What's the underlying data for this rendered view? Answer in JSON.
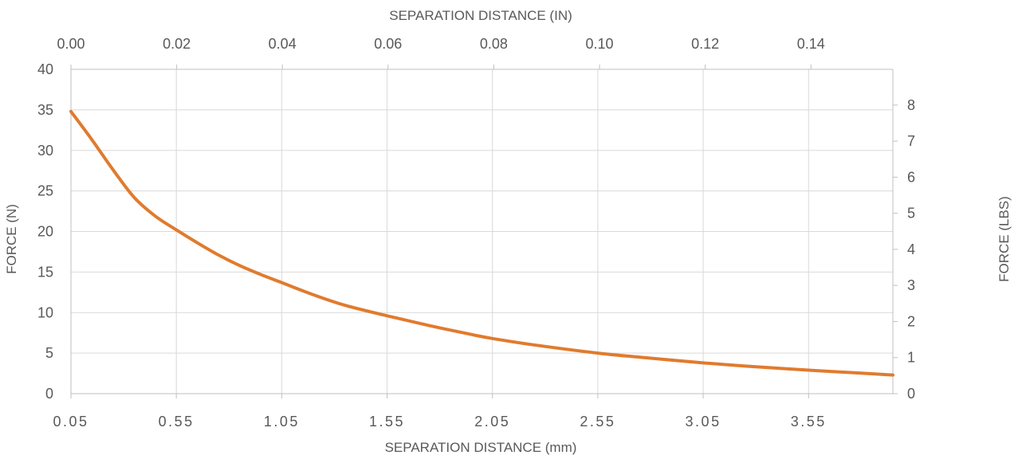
{
  "chart_data": {
    "type": "line",
    "title": "",
    "xlabel": "SEPARATION DISTANCE (mm)",
    "x2label": "SEPARATION DISTANCE (IN)",
    "ylabel": "FORCE (N)",
    "y2label": "FORCE (LBS)",
    "xlim": [
      0.05,
      3.95
    ],
    "ylim": [
      0,
      40
    ],
    "x2lim": [
      0,
      0.1555
    ],
    "y2lim": [
      0,
      8.99
    ],
    "x_ticks": [
      "0.05",
      "0.55",
      "1.05",
      "1.55",
      "2.05",
      "2.55",
      "3.05",
      "3.55"
    ],
    "x2_ticks": [
      "0.00",
      "0.02",
      "0.04",
      "0.06",
      "0.08",
      "0.10",
      "0.12",
      "0.14"
    ],
    "y_ticks": [
      "0",
      "5",
      "10",
      "15",
      "20",
      "25",
      "30",
      "35",
      "40"
    ],
    "y2_ticks": [
      "0",
      "1",
      "2",
      "3",
      "4",
      "5",
      "6",
      "7",
      "8"
    ],
    "grid": true,
    "line_color": "#E07B2E",
    "series": [
      {
        "x": [
          0.05,
          0.15,
          0.25,
          0.35,
          0.45,
          0.55,
          0.65,
          0.75,
          0.85,
          0.95,
          1.05,
          1.2,
          1.35,
          1.55,
          1.75,
          1.95,
          2.05,
          2.25,
          2.55,
          2.75,
          3.05,
          3.25,
          3.55,
          3.75,
          3.95
        ],
        "values": [
          34.8,
          31.3,
          27.6,
          24.2,
          21.9,
          20.2,
          18.6,
          17.1,
          15.8,
          14.7,
          13.7,
          12.2,
          10.9,
          9.6,
          8.4,
          7.3,
          6.8,
          6.0,
          5.0,
          4.5,
          3.8,
          3.4,
          2.9,
          2.6,
          2.3
        ]
      }
    ]
  }
}
